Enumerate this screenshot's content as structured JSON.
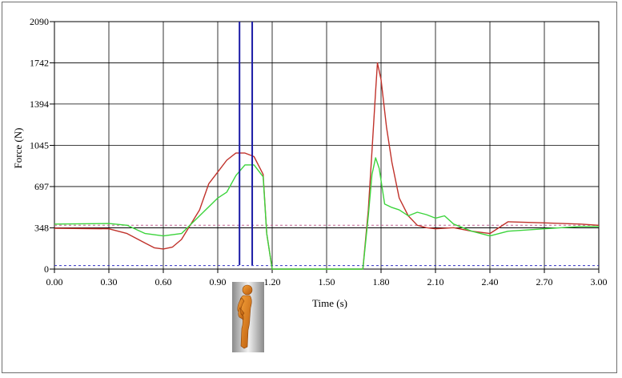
{
  "chart_data": {
    "type": "line",
    "xlabel": "Time (s)",
    "ylabel": "Force (N)",
    "xlim": [
      0,
      3
    ],
    "ylim": [
      0,
      2090
    ],
    "x_ticks": [
      "0.00",
      "0.30",
      "0.60",
      "0.90",
      "1.20",
      "1.50",
      "1.80",
      "2.10",
      "2.40",
      "2.70",
      "3.00"
    ],
    "y_ticks": [
      "0",
      "348",
      "697",
      "1045",
      "1394",
      "1742",
      "2090"
    ],
    "grid": true,
    "colors": {
      "red": "#c0322b",
      "green": "#3cd43c",
      "blue_marker": "#1a1aa6",
      "threshold_upper": "#c06090",
      "threshold_lower": "#3030c0"
    },
    "reference_lines": [
      {
        "style": "dashed",
        "color": "threshold_upper",
        "y": 370
      },
      {
        "style": "solid",
        "color": "threshold_mid",
        "y": 348
      },
      {
        "style": "dashed",
        "color": "threshold_lower",
        "y": 30
      }
    ],
    "markers": [
      {
        "x": 1.02
      },
      {
        "x": 1.09
      }
    ],
    "series": [
      {
        "color": "red",
        "x": [
          0.0,
          0.3,
          0.4,
          0.5,
          0.55,
          0.6,
          0.65,
          0.7,
          0.8,
          0.85,
          0.9,
          0.95,
          1.0,
          1.05,
          1.1,
          1.15,
          1.17,
          1.2,
          1.7,
          1.73,
          1.75,
          1.77,
          1.78,
          1.8,
          1.83,
          1.86,
          1.9,
          1.95,
          2.0,
          2.05,
          2.1,
          2.2,
          2.3,
          2.4,
          2.5,
          2.7,
          2.9,
          3.0
        ],
        "y": [
          345,
          340,
          300,
          220,
          180,
          170,
          185,
          250,
          500,
          720,
          820,
          920,
          980,
          980,
          950,
          800,
          300,
          0,
          0,
          500,
          1000,
          1500,
          1742,
          1600,
          1200,
          900,
          600,
          450,
          370,
          350,
          340,
          350,
          320,
          300,
          400,
          390,
          380,
          370
        ]
      },
      {
        "color": "green",
        "x": [
          0.0,
          0.3,
          0.4,
          0.5,
          0.55,
          0.6,
          0.7,
          0.8,
          0.9,
          0.95,
          1.0,
          1.05,
          1.1,
          1.15,
          1.17,
          1.2,
          1.7,
          1.73,
          1.75,
          1.77,
          1.79,
          1.82,
          1.86,
          1.9,
          1.95,
          2.0,
          2.05,
          2.1,
          2.15,
          2.2,
          2.3,
          2.4,
          2.5,
          2.7,
          2.9,
          3.0
        ],
        "y": [
          380,
          385,
          370,
          300,
          290,
          280,
          300,
          450,
          600,
          650,
          790,
          880,
          880,
          780,
          300,
          0,
          0,
          450,
          800,
          940,
          850,
          550,
          520,
          500,
          450,
          480,
          460,
          430,
          450,
          380,
          320,
          280,
          320,
          340,
          360,
          360
        ]
      }
    ]
  },
  "figure_icon": "standing-person-silhouette-icon"
}
